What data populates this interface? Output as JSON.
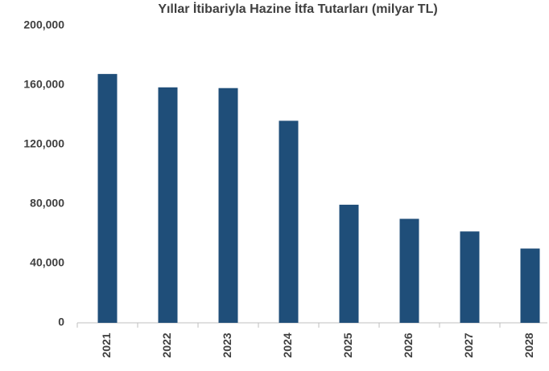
{
  "chart_data": {
    "type": "bar",
    "title": "Yıllar İtibariyla Hazine İtfa Tutarları (milyar TL)",
    "categories": [
      "2021",
      "2022",
      "2023",
      "2024",
      "2025",
      "2026",
      "2027",
      "2028"
    ],
    "values": [
      167500,
      158500,
      158000,
      136000,
      79500,
      70000,
      61500,
      50000
    ],
    "color": "#1f4e79",
    "ylim": [
      0,
      200000
    ],
    "yticks": [
      0,
      {
        "value": 40000,
        "label": "40,000"
      },
      {
        "value": 80000,
        "label": "80,000"
      },
      {
        "value": 120000,
        "label": "120,000"
      },
      {
        "value": 160000,
        "label": "160,000"
      },
      {
        "value": 200000,
        "label": "200,000"
      }
    ],
    "grid": false
  }
}
